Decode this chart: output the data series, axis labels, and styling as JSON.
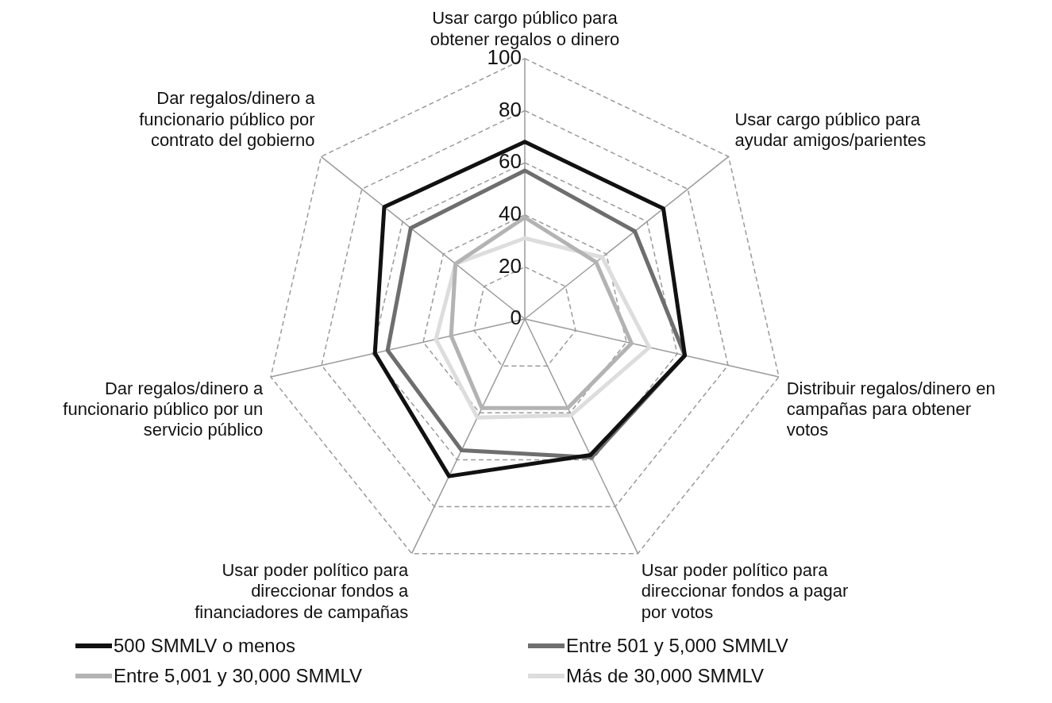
{
  "chart_data": {
    "type": "radar",
    "categories": [
      "Usar cargo público para obtener regalos o dinero",
      "Usar cargo público para ayudar amigos/parientes",
      "Distribuir regalos/dinero en campañas para obtener votos",
      "Usar poder político para direccionar fondos a pagar por votos",
      "Usar poder político para direccionar fondos a financiadores de campañas",
      "Dar regalos/dinero a funcionario público por un servicio público",
      "Dar regalos/dinero a funcionario público por contrato del gobierno"
    ],
    "series": [
      {
        "name": "500 SMMLV o menos",
        "color": "#111111",
        "values": [
          68,
          68,
          63,
          58,
          67,
          59,
          69
        ]
      },
      {
        "name": "Entre 501 y 5,000 SMMLV",
        "color": "#6e6e6e",
        "values": [
          57,
          54,
          63,
          59,
          56,
          54,
          56
        ]
      },
      {
        "name": "Entre 5,001 y 30,000 SMMLV",
        "color": "#b3b3b3",
        "values": [
          39,
          35,
          42,
          38,
          38,
          29,
          34
        ]
      },
      {
        "name": "Más de 30,000 SMMLV",
        "color": "#dddddd",
        "values": [
          31,
          38,
          49,
          41,
          42,
          35,
          34
        ]
      }
    ],
    "ylim": [
      0,
      100
    ],
    "yticks": [
      0,
      20,
      40,
      60,
      80,
      100
    ],
    "grid": true,
    "legend": "bottom",
    "marker": "none",
    "line_style": "solid"
  }
}
